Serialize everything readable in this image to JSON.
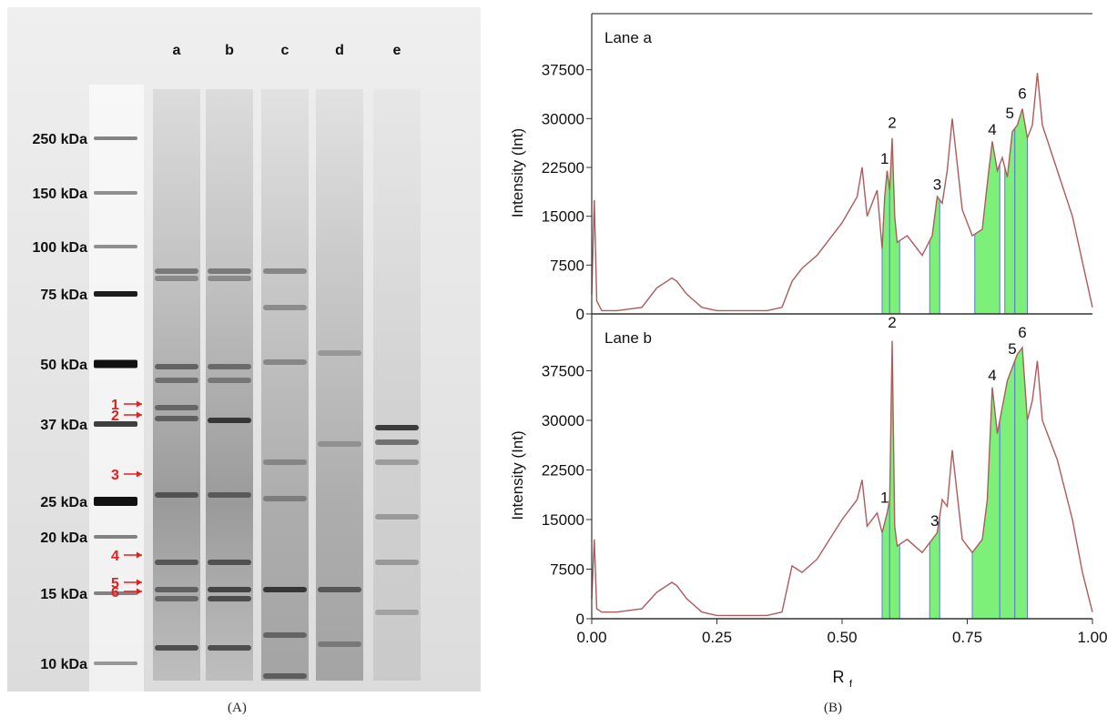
{
  "captions": {
    "a": "(A)",
    "b": "(B)"
  },
  "gel": {
    "lanes": [
      "a",
      "b",
      "c",
      "d",
      "e"
    ],
    "markers": [
      "250 kDa",
      "150 kDa",
      "100 kDa",
      "75 kDa",
      "50 kDa",
      "37 kDa",
      "25 kDa",
      "20 kDa",
      "15 kDa",
      "10 kDa"
    ],
    "band_arrows": [
      "1",
      "2",
      "3",
      "4",
      "5",
      "6"
    ],
    "arrow_color": "#e41e1e"
  },
  "chart_data": [
    {
      "type": "area",
      "title": "Lane a",
      "xlabel": "R",
      "xlabel_subscript": "f",
      "ylabel": "Intensity (Int)",
      "xlim": [
        0,
        1
      ],
      "ylim": [
        0,
        45000
      ],
      "xticks": [
        "0.00",
        "0.25",
        "0.50",
        "0.75",
        "1.00"
      ],
      "yticks": [
        "0",
        "7500",
        "15000",
        "22500",
        "30000",
        "37500"
      ],
      "line_color": "#b05a5a",
      "fill_color": "#7df07a",
      "x": [
        0.0,
        0.005,
        0.01,
        0.02,
        0.05,
        0.1,
        0.13,
        0.16,
        0.17,
        0.19,
        0.22,
        0.25,
        0.3,
        0.35,
        0.38,
        0.4,
        0.42,
        0.45,
        0.5,
        0.53,
        0.54,
        0.55,
        0.57,
        0.58,
        0.585,
        0.59,
        0.595,
        0.6,
        0.605,
        0.61,
        0.63,
        0.66,
        0.68,
        0.69,
        0.7,
        0.71,
        0.72,
        0.74,
        0.76,
        0.78,
        0.79,
        0.8,
        0.81,
        0.82,
        0.83,
        0.84,
        0.85,
        0.86,
        0.87,
        0.88,
        0.89,
        0.9,
        0.93,
        0.96,
        0.98,
        1.0
      ],
      "y": [
        3000,
        17500,
        2000,
        500,
        500,
        1000,
        4000,
        5500,
        5000,
        3000,
        1000,
        500,
        500,
        500,
        1000,
        5000,
        7000,
        9000,
        14000,
        18000,
        22500,
        15000,
        19000,
        10000,
        18000,
        22000,
        19000,
        27000,
        15000,
        11000,
        12000,
        9000,
        12000,
        18000,
        17000,
        22000,
        30000,
        16000,
        12000,
        13000,
        20000,
        26500,
        22000,
        24000,
        21000,
        28000,
        29000,
        31500,
        27000,
        29000,
        37000,
        29000,
        22000,
        15000,
        8000,
        1000
      ],
      "shaded_peaks": [
        {
          "label": "1",
          "x0": 0.58,
          "x1": 0.595
        },
        {
          "label": "2",
          "x0": 0.595,
          "x1": 0.615
        },
        {
          "label": "3",
          "x0": 0.675,
          "x1": 0.695
        },
        {
          "label": "4",
          "x0": 0.765,
          "x1": 0.815
        },
        {
          "label": "5",
          "x0": 0.825,
          "x1": 0.845
        },
        {
          "label": "6",
          "x0": 0.845,
          "x1": 0.87
        }
      ],
      "peak_labels": [
        {
          "label": "1",
          "x": 0.585,
          "y": 22500
        },
        {
          "label": "2",
          "x": 0.6,
          "y": 28000
        },
        {
          "label": "3",
          "x": 0.69,
          "y": 18500
        },
        {
          "label": "4",
          "x": 0.8,
          "y": 27000
        },
        {
          "label": "5",
          "x": 0.835,
          "y": 29500
        },
        {
          "label": "6",
          "x": 0.86,
          "y": 32500
        }
      ]
    },
    {
      "type": "area",
      "title": "Lane b",
      "xlabel": "R",
      "xlabel_subscript": "f",
      "ylabel": "Intensity (Int)",
      "xlim": [
        0,
        1
      ],
      "ylim": [
        0,
        45000
      ],
      "xticks": [
        "0.00",
        "0.25",
        "0.50",
        "0.75",
        "1.00"
      ],
      "yticks": [
        "0",
        "7500",
        "15000",
        "22500",
        "30000",
        "37500"
      ],
      "line_color": "#b05a5a",
      "fill_color": "#7df07a",
      "x": [
        0.0,
        0.005,
        0.01,
        0.02,
        0.05,
        0.1,
        0.13,
        0.16,
        0.17,
        0.19,
        0.22,
        0.25,
        0.3,
        0.35,
        0.38,
        0.4,
        0.42,
        0.45,
        0.5,
        0.53,
        0.54,
        0.55,
        0.57,
        0.58,
        0.59,
        0.595,
        0.6,
        0.605,
        0.61,
        0.63,
        0.66,
        0.68,
        0.69,
        0.7,
        0.71,
        0.72,
        0.74,
        0.76,
        0.78,
        0.79,
        0.8,
        0.81,
        0.82,
        0.83,
        0.84,
        0.85,
        0.86,
        0.87,
        0.88,
        0.89,
        0.9,
        0.93,
        0.96,
        0.98,
        1.0
      ],
      "y": [
        3000,
        12000,
        1500,
        1000,
        1000,
        1500,
        4000,
        5500,
        5000,
        3000,
        1000,
        500,
        500,
        500,
        1000,
        8000,
        7000,
        9000,
        15000,
        18000,
        21000,
        14000,
        16000,
        13000,
        16000,
        18000,
        42000,
        14000,
        11000,
        12000,
        10000,
        12000,
        13000,
        18000,
        17000,
        25500,
        12000,
        10000,
        12000,
        18000,
        35000,
        28000,
        32000,
        36000,
        38000,
        40000,
        41000,
        30000,
        33000,
        39000,
        30000,
        24000,
        15000,
        7000,
        1000
      ],
      "shaded_peaks": [
        {
          "label": "1",
          "x0": 0.58,
          "x1": 0.595
        },
        {
          "label": "2",
          "x0": 0.595,
          "x1": 0.615
        },
        {
          "label": "3",
          "x0": 0.675,
          "x1": 0.695
        },
        {
          "label": "4",
          "x0": 0.76,
          "x1": 0.815
        },
        {
          "label": "5",
          "x0": 0.815,
          "x1": 0.845
        },
        {
          "label": "6",
          "x0": 0.845,
          "x1": 0.87
        }
      ],
      "peak_labels": [
        {
          "label": "1",
          "x": 0.585,
          "y": 17000
        },
        {
          "label": "2",
          "x": 0.6,
          "y": 43500
        },
        {
          "label": "3",
          "x": 0.685,
          "y": 13500
        },
        {
          "label": "4",
          "x": 0.8,
          "y": 35500
        },
        {
          "label": "5",
          "x": 0.84,
          "y": 39500
        },
        {
          "label": "6",
          "x": 0.86,
          "y": 42000
        }
      ]
    }
  ]
}
